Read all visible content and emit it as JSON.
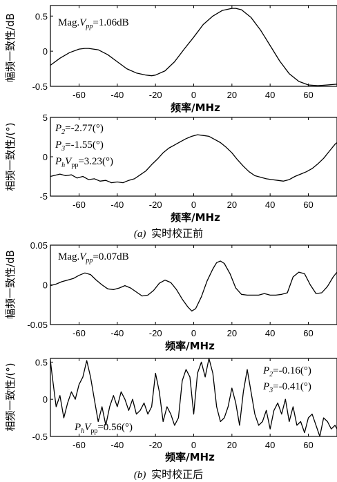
{
  "figure": {
    "caption_a_letter": "(a)",
    "caption_a_text": "实时校正前",
    "caption_b_letter": "(b)",
    "caption_b_text": "实时校正后"
  },
  "chart_data": [
    {
      "type": "line",
      "xlabel": "频率/MHz",
      "ylabel": "幅频一致性/dB",
      "xlim": [
        -75,
        75
      ],
      "ylim": [
        -0.5,
        0.65
      ],
      "xticks": [
        "-60",
        "-40",
        "-20",
        "0",
        "20",
        "40",
        "60"
      ],
      "yticks": [
        "0.5",
        "0",
        "-0.5"
      ],
      "annotations": [
        {
          "prefix": "Mag.",
          "sym": "V",
          "sub": "pp",
          "value": "=1.06dB"
        }
      ],
      "series": [
        {
          "x": [
            -75,
            -70,
            -65,
            -60,
            -57,
            -55,
            -50,
            -45,
            -40,
            -35,
            -30,
            -25,
            -22,
            -20,
            -15,
            -10,
            -5,
            0,
            5,
            10,
            15,
            20,
            22,
            25,
            30,
            35,
            40,
            45,
            50,
            55,
            60,
            65,
            70,
            75
          ],
          "y": [
            -0.2,
            -0.1,
            -0.02,
            0.03,
            0.04,
            0.04,
            0.02,
            -0.05,
            -0.15,
            -0.25,
            -0.31,
            -0.34,
            -0.35,
            -0.34,
            -0.28,
            -0.15,
            0.03,
            0.2,
            0.38,
            0.5,
            0.58,
            0.61,
            0.61,
            0.59,
            0.48,
            0.3,
            0.08,
            -0.14,
            -0.32,
            -0.43,
            -0.48,
            -0.49,
            -0.48,
            -0.47
          ]
        }
      ]
    },
    {
      "type": "line",
      "xlabel": "频率/MHz",
      "ylabel": "相频一致性/(°)",
      "xlim": [
        -75,
        75
      ],
      "ylim": [
        -5,
        5
      ],
      "xticks": [
        "-60",
        "-40",
        "-20",
        "0",
        "20",
        "40",
        "60"
      ],
      "yticks": [
        "5",
        "0",
        "-5"
      ],
      "annotations": [
        {
          "sym": "P",
          "sub": "2",
          "value": "=-2.77(°)"
        },
        {
          "sym": "P",
          "sub": "3",
          "value": "=-1.55(°)"
        },
        {
          "sym": "P",
          "sub": "h",
          "sym2": "V",
          "sub2": "pp",
          "value": "=3.23(°)"
        }
      ],
      "series": [
        {
          "x": [
            -75,
            -70,
            -67,
            -64,
            -61,
            -58,
            -55,
            -52,
            -49,
            -46,
            -43,
            -40,
            -37,
            -34,
            -31,
            -28,
            -25,
            -22,
            -19,
            -16,
            -13,
            -10,
            -7,
            -4,
            -1,
            2,
            5,
            8,
            11,
            14,
            17,
            20,
            23,
            26,
            29,
            32,
            35,
            38,
            41,
            44,
            47,
            50,
            53,
            56,
            59,
            62,
            65,
            68,
            71,
            74,
            75
          ],
          "y": [
            -2.5,
            -2.2,
            -2.4,
            -2.3,
            -2.7,
            -2.5,
            -2.9,
            -2.8,
            -3.1,
            -3.0,
            -3.3,
            -3.2,
            -3.3,
            -3.0,
            -2.8,
            -2.3,
            -1.8,
            -1.0,
            -0.3,
            0.5,
            1.1,
            1.5,
            1.9,
            2.3,
            2.6,
            2.8,
            2.7,
            2.6,
            2.2,
            1.8,
            1.2,
            0.5,
            -0.4,
            -1.2,
            -1.9,
            -2.4,
            -2.6,
            -2.8,
            -2.9,
            -3.0,
            -3.1,
            -2.9,
            -2.5,
            -2.2,
            -1.9,
            -1.5,
            -0.9,
            -0.2,
            0.7,
            1.6,
            1.8
          ]
        }
      ]
    },
    {
      "type": "line",
      "xlabel": "频率/MHz",
      "ylabel": "幅频一致性/dB",
      "xlim": [
        -75,
        75
      ],
      "ylim": [
        -0.05,
        0.05
      ],
      "xticks": [
        "-60",
        "-40",
        "-20",
        "0",
        "20",
        "40",
        "60"
      ],
      "yticks": [
        "0.05",
        "0",
        "-0.05"
      ],
      "annotations": [
        {
          "prefix": "Mag.",
          "sym": "V",
          "sub": "pp",
          "value": "=0.07dB"
        }
      ],
      "series": [
        {
          "x": [
            -75,
            -72,
            -69,
            -66,
            -63,
            -60,
            -57,
            -54,
            -51,
            -48,
            -45,
            -42,
            -39,
            -36,
            -33,
            -30,
            -27,
            -24,
            -21,
            -18,
            -15,
            -12,
            -9,
            -6,
            -3,
            -1,
            1,
            4,
            7,
            10,
            12,
            14,
            16,
            19,
            22,
            25,
            28,
            31,
            34,
            37,
            40,
            43,
            46,
            49,
            52,
            55,
            58,
            61,
            64,
            67,
            70,
            73,
            75
          ],
          "y": [
            -0.001,
            0.001,
            0.004,
            0.006,
            0.008,
            0.012,
            0.015,
            0.013,
            0.006,
            0.0,
            -0.005,
            -0.006,
            -0.004,
            -0.001,
            -0.004,
            -0.009,
            -0.014,
            -0.013,
            -0.007,
            0.002,
            0.006,
            0.003,
            -0.006,
            -0.018,
            -0.028,
            -0.033,
            -0.03,
            -0.015,
            0.005,
            0.02,
            0.028,
            0.03,
            0.027,
            0.014,
            -0.004,
            -0.012,
            -0.013,
            -0.013,
            -0.013,
            -0.011,
            -0.013,
            -0.013,
            -0.012,
            -0.01,
            0.01,
            0.016,
            0.014,
            0.0,
            -0.011,
            -0.01,
            -0.002,
            0.01,
            0.016
          ]
        }
      ]
    },
    {
      "type": "line",
      "xlabel": "频率/MHz",
      "ylabel": "相频一致性/(°)",
      "xlim": [
        -75,
        75
      ],
      "ylim": [
        -0.5,
        0.55
      ],
      "xticks": [
        "-60",
        "-40",
        "-20",
        "0",
        "20",
        "40",
        "60"
      ],
      "yticks": [
        "0.5",
        "0",
        "-0.5"
      ],
      "annotations": [
        {
          "sym": "P",
          "sub": "2",
          "value": "=-0.16(°)"
        },
        {
          "sym": "P",
          "sub": "3",
          "value": "=-0.41(°)"
        },
        {
          "sym": "P",
          "sub": "h",
          "sym2": "V",
          "sub2": "pp",
          "value": "=0.56(°)"
        }
      ],
      "series": [
        {
          "x": [
            -75,
            -74,
            -72,
            -70,
            -68,
            -66,
            -64,
            -62,
            -60,
            -58,
            -56,
            -54,
            -52,
            -50,
            -48,
            -46,
            -44,
            -42,
            -40,
            -38,
            -36,
            -34,
            -32,
            -30,
            -28,
            -26,
            -24,
            -22,
            -20,
            -18,
            -16,
            -14,
            -12,
            -10,
            -8,
            -6,
            -4,
            -2,
            0,
            2,
            4,
            6,
            8,
            10,
            12,
            14,
            16,
            18,
            20,
            22,
            24,
            26,
            28,
            30,
            32,
            34,
            36,
            38,
            40,
            42,
            44,
            46,
            48,
            50,
            52,
            54,
            56,
            58,
            60,
            62,
            64,
            66,
            68,
            70,
            72,
            74,
            75
          ],
          "y": [
            0.52,
            0.3,
            -0.1,
            0.05,
            -0.25,
            -0.05,
            0.1,
            0.0,
            0.2,
            0.3,
            0.52,
            0.3,
            0.0,
            -0.3,
            -0.1,
            -0.35,
            -0.1,
            0.05,
            -0.1,
            0.1,
            0.0,
            -0.15,
            0.0,
            -0.2,
            -0.15,
            -0.05,
            -0.2,
            -0.1,
            0.35,
            0.1,
            -0.3,
            -0.1,
            -0.2,
            -0.35,
            -0.25,
            0.25,
            0.4,
            0.3,
            -0.2,
            0.35,
            0.5,
            0.3,
            0.55,
            0.35,
            -0.1,
            -0.3,
            -0.25,
            -0.1,
            0.15,
            -0.05,
            -0.35,
            0.1,
            0.4,
            0.1,
            -0.2,
            -0.35,
            -0.3,
            -0.15,
            -0.4,
            -0.15,
            -0.05,
            -0.2,
            0.0,
            -0.3,
            -0.1,
            -0.35,
            -0.3,
            -0.45,
            -0.25,
            -0.2,
            -0.35,
            -0.5,
            -0.25,
            -0.3,
            -0.4,
            -0.35,
            -0.4
          ]
        }
      ]
    }
  ]
}
